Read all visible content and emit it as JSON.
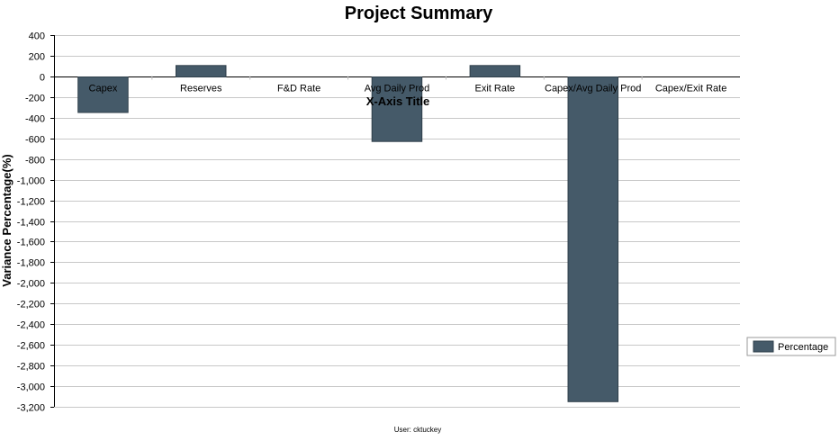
{
  "chart_data": {
    "type": "bar",
    "title": "Project Summary",
    "xlabel": "X-Axis Title",
    "ylabel": "Variance Percentage(%)",
    "categories": [
      "Capex",
      "Reserves",
      "F&D Rate",
      "Avg Daily Prod",
      "Exit Rate",
      "Capex/Avg Daily Prod",
      "Capex/Exit Rate"
    ],
    "series": [
      {
        "name": "Percentage",
        "values": [
          -350,
          105,
          0,
          -630,
          105,
          -3150,
          0
        ],
        "color": "#455a69"
      }
    ],
    "ylim": [
      -3200,
      400
    ],
    "yticks": [
      400,
      200,
      0,
      -200,
      -400,
      -600,
      -800,
      -1000,
      -1200,
      -1400,
      -1600,
      -1800,
      -2000,
      -2200,
      -2400,
      -2600,
      -2800,
      -3000,
      -3200
    ],
    "ytick_labels": [
      "400",
      "200",
      "0",
      "-200",
      "-400",
      "-600",
      "-800",
      "-1,000",
      "-1,200",
      "-1,400",
      "-1,600",
      "-1,800",
      "-2,000",
      "-2,200",
      "-2,400",
      "-2,600",
      "-2,800",
      "-3,000",
      "-3,200"
    ],
    "grid": true,
    "legend_position": "right"
  },
  "footer": {
    "user_text": "User: cktuckey"
  }
}
